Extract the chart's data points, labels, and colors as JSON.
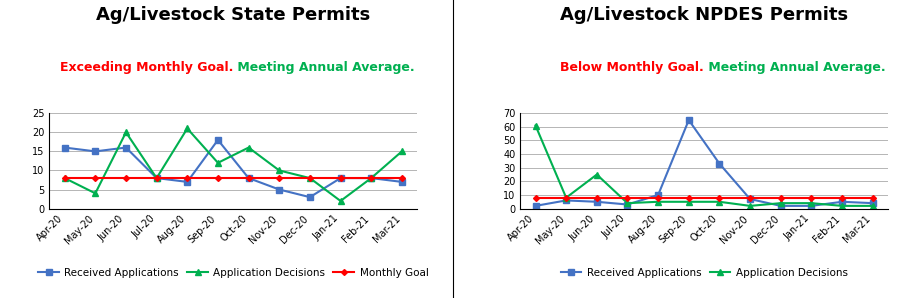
{
  "months": [
    "Apr-20",
    "May-20",
    "Jun-20",
    "Jul-20",
    "Aug-20",
    "Sep-20",
    "Oct-20",
    "Nov-20",
    "Dec-20",
    "Jan-21",
    "Feb-21",
    "Mar-21"
  ],
  "state_received": [
    16,
    15,
    16,
    8,
    7,
    18,
    8,
    5,
    3,
    8,
    8,
    7
  ],
  "state_decisions": [
    8,
    4,
    20,
    8,
    21,
    12,
    16,
    10,
    8,
    2,
    8,
    15
  ],
  "state_goal": [
    8,
    8,
    8,
    8,
    8,
    8,
    8,
    8,
    8,
    8,
    8,
    8
  ],
  "npdes_received": [
    2,
    6,
    5,
    3,
    10,
    65,
    33,
    7,
    2,
    2,
    5,
    4
  ],
  "npdes_decisions": [
    61,
    8,
    25,
    4,
    5,
    5,
    5,
    2,
    4,
    4,
    2,
    2
  ],
  "npdes_goal": [
    8,
    8,
    8,
    8,
    8,
    8,
    8,
    8,
    8,
    8,
    8,
    8
  ],
  "state_title": "Ag/Livestock State Permits",
  "state_subtitle_red": "Exceeding Monthly Goal.",
  "state_subtitle_green": " Meeting Annual Average.",
  "state_ylim": [
    0,
    25
  ],
  "state_yticks": [
    0,
    5,
    10,
    15,
    20,
    25
  ],
  "npdes_title": "Ag/Livestock NPDES Permits",
  "npdes_subtitle_red": "Below Monthly Goal.",
  "npdes_subtitle_green": " Meeting Annual Average.",
  "npdes_ylim": [
    0,
    70
  ],
  "npdes_yticks": [
    0,
    10,
    20,
    30,
    40,
    50,
    60,
    70
  ],
  "color_blue": "#1F4E79",
  "color_green": "#00B050",
  "color_red": "#FF0000",
  "line_color_blue": "#4472C4",
  "line_color_green": "#00B050",
  "title_fontsize": 13,
  "subtitle_fontsize": 9,
  "tick_fontsize": 7,
  "legend_fontsize": 7.5
}
